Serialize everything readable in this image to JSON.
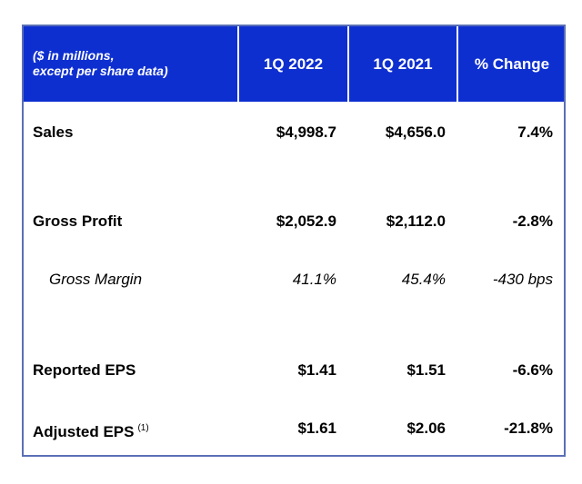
{
  "header": {
    "caption_line1": "($ in millions,",
    "caption_line2": "except per share data)",
    "col1": "1Q 2022",
    "col2": "1Q 2021",
    "col3": "% Change"
  },
  "rows": [
    {
      "label": "Sales",
      "v1": "$4,998.7",
      "v2": "$4,656.0",
      "v3": "7.4%"
    },
    {
      "label": "Gross Profit",
      "v1": "$2,052.9",
      "v2": "$2,112.0",
      "v3": "-2.8%"
    },
    {
      "label": "Gross Margin",
      "v1": "41.1%",
      "v2": "45.4%",
      "v3": "-430 bps"
    },
    {
      "label": "Reported EPS",
      "v1": "$1.41",
      "v2": "$1.51",
      "v3": "-6.6%"
    },
    {
      "label": "Adjusted EPS",
      "footnote": "(1)",
      "v1": "$1.61",
      "v2": "$2.06",
      "v3": "-21.8%"
    }
  ],
  "colors": {
    "header_bg": "#0e2fd0",
    "border": "#5a6fb6",
    "header_text": "#ffffff"
  }
}
